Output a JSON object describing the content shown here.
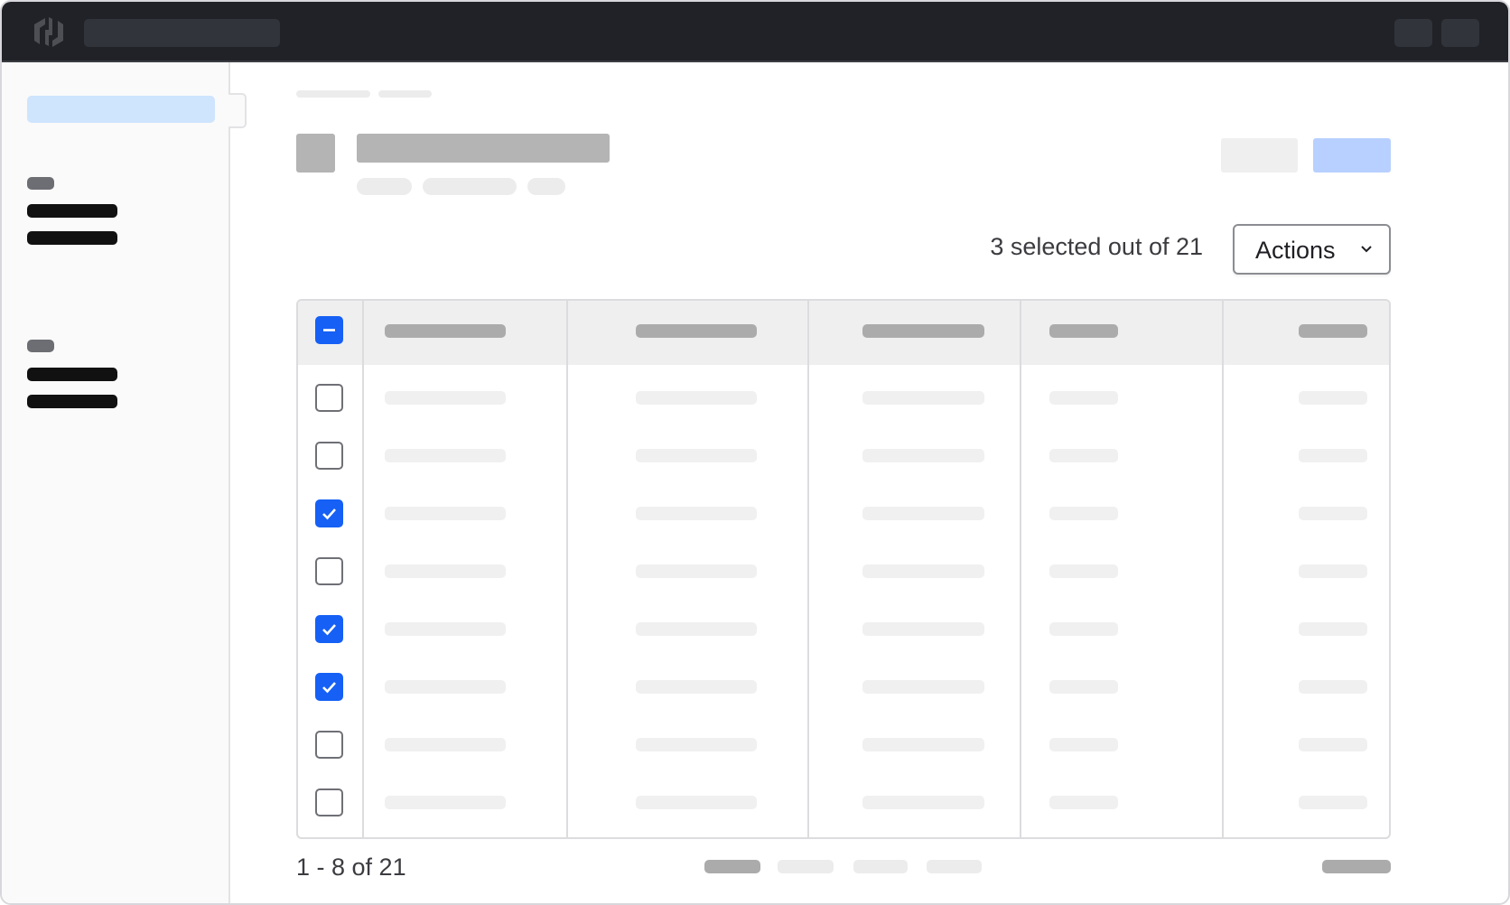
{
  "selection": {
    "summary": "3 selected out of 21",
    "actions_label": "Actions"
  },
  "table": {
    "header_checkbox_state": "indeterminate",
    "rows": [
      {
        "checked": false
      },
      {
        "checked": false
      },
      {
        "checked": true
      },
      {
        "checked": false
      },
      {
        "checked": true
      },
      {
        "checked": true
      },
      {
        "checked": false
      },
      {
        "checked": false
      }
    ]
  },
  "pagination": {
    "range_text": "1 - 8 of 21"
  },
  "colors": {
    "accent": "#1660f5",
    "topbar": "#202227",
    "primary_button": "#b8d0ff",
    "sidebar_active": "#cfe4fd"
  },
  "icons": {
    "logo": "hashicorp-logo-icon",
    "actions_caret": "chevron-down-icon",
    "check": "check-icon",
    "minus": "minus-icon"
  }
}
